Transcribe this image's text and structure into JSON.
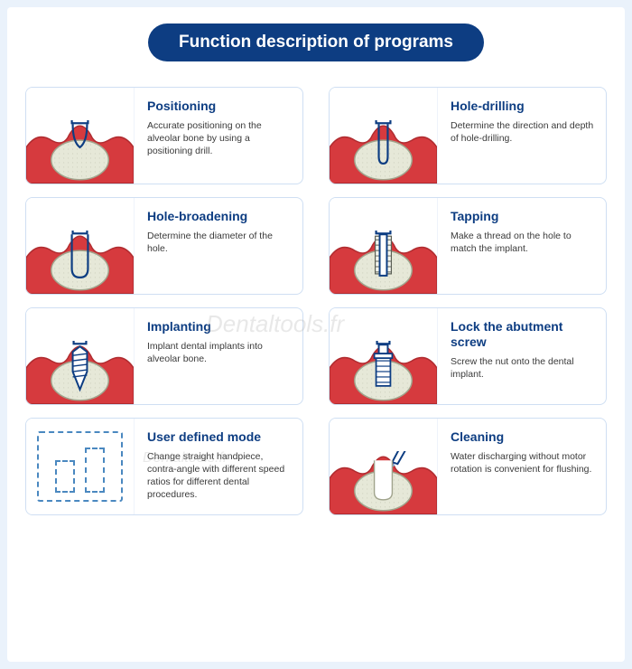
{
  "header": {
    "title": "Function description of programs"
  },
  "colors": {
    "brand": "#0d3d82",
    "card_border": "#cfdff3",
    "gum": "#d63a3e",
    "gum_edge": "#b02c30",
    "bone": "#e6e8d8",
    "bone_edge": "#a0a38c",
    "tool": "#0d3d82",
    "water": "#7fb7e8",
    "thread": "#5a5f55",
    "dash": "#4a88c0",
    "bg": "#eaf2fb",
    "panel": "#ffffff",
    "text": "#3a3a3a"
  },
  "cards": [
    {
      "id": "positioning",
      "illus": "positioning",
      "title": "Positioning",
      "desc": "Accurate positioning on the alveolar bone by\nusing a positioning drill."
    },
    {
      "id": "hole-drilling",
      "illus": "drilling",
      "title": "Hole-drilling",
      "desc": "Determine the direction and depth of hole-drilling."
    },
    {
      "id": "hole-broadening",
      "illus": "broadening",
      "title": "Hole-broadening",
      "desc": "Determine the diameter of the hole."
    },
    {
      "id": "tapping",
      "illus": "tapping",
      "title": "Tapping",
      "desc": "Make a thread on the hole to match the implant."
    },
    {
      "id": "implanting",
      "illus": "implanting",
      "title": "Implanting",
      "desc": "Implant dental implants into alveolar bone."
    },
    {
      "id": "lock-abutment",
      "illus": "lock",
      "title": "Lock the abutment screw",
      "desc": "Screw the nut onto the dental implant."
    },
    {
      "id": "user-mode",
      "illus": "user",
      "title": "User defined mode",
      "desc": "Change straight handpiece, contra-angle with different speed ratios for different dental procedures."
    },
    {
      "id": "cleaning",
      "illus": "cleaning",
      "title": "Cleaning",
      "desc": "Water discharging without motor rotation is convenient for flushing."
    }
  ],
  "watermark": "Dentaltools.fr"
}
